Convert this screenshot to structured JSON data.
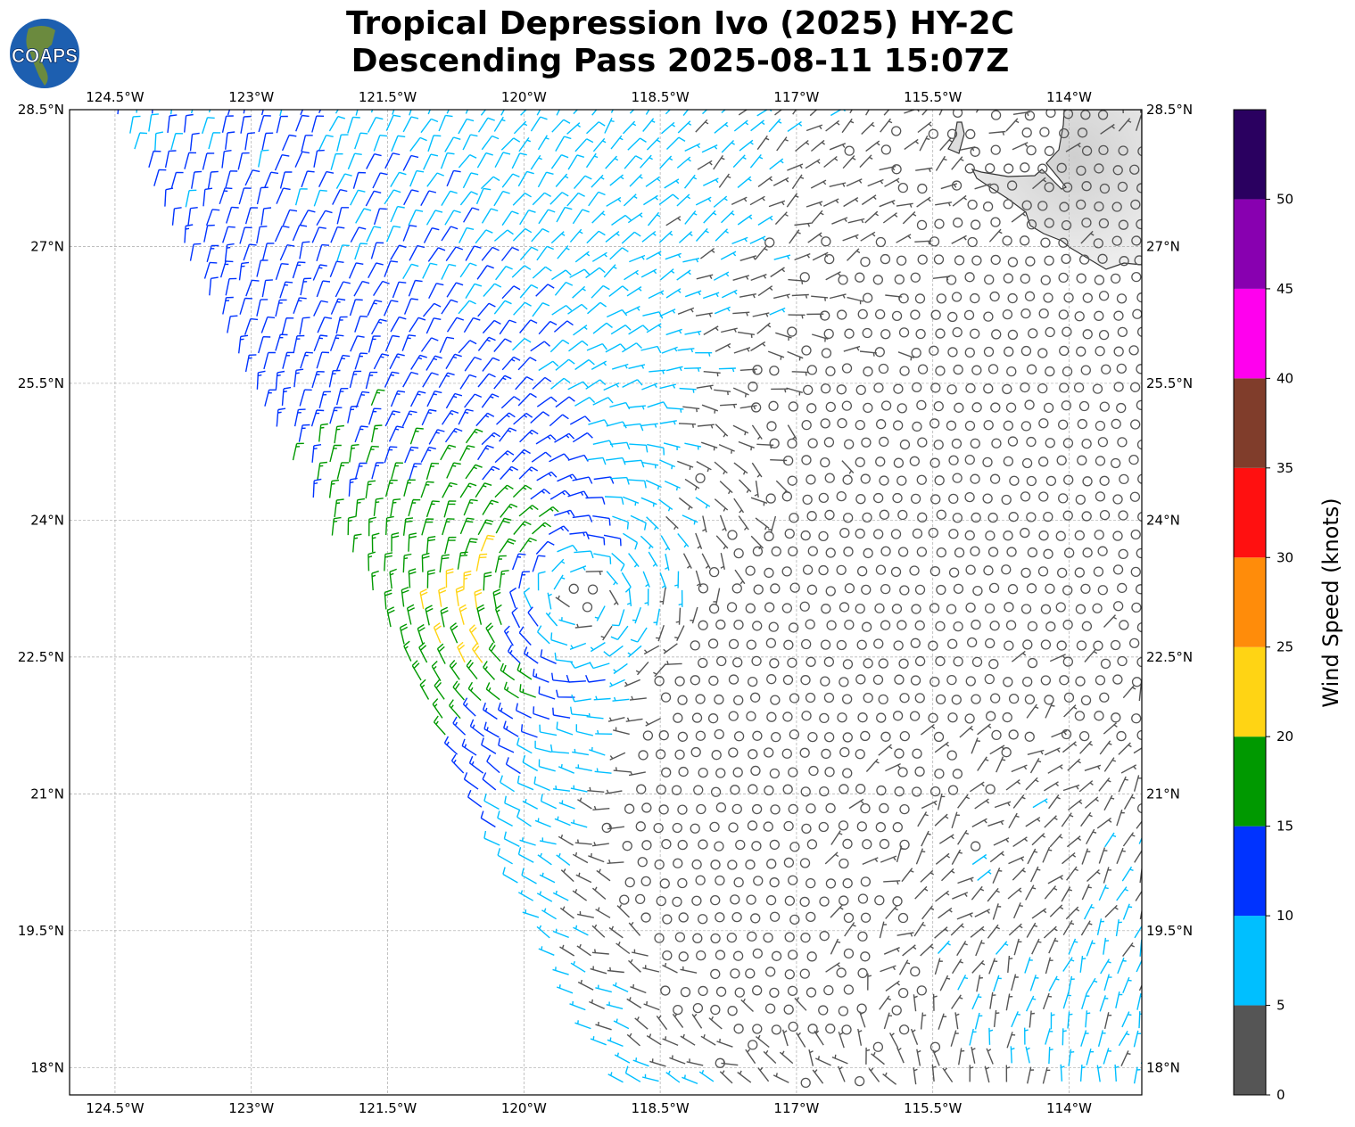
{
  "header": {
    "title_line1": "Tropical Depression Ivo (2025) HY-2C",
    "title_line2": "Descending Pass 2025-08-11 15:07Z",
    "logo_text": "COAPS"
  },
  "chart_data": {
    "type": "map",
    "title": "Tropical Depression Ivo (2025) HY-2C Descending Pass 2025-08-11 15:07Z",
    "extent": {
      "lon_west": -125.0,
      "lon_east": -113.2,
      "lat_south": 17.7,
      "lat_north": 28.5
    },
    "lon_ticks": [
      {
        "value": -124.5,
        "label": "124.5°W"
      },
      {
        "value": -123.0,
        "label": "123°W"
      },
      {
        "value": -121.5,
        "label": "121.5°W"
      },
      {
        "value": -120.0,
        "label": "120°W"
      },
      {
        "value": -118.5,
        "label": "118.5°W"
      },
      {
        "value": -117.0,
        "label": "117°W"
      },
      {
        "value": -115.5,
        "label": "115.5°W"
      },
      {
        "value": -114.0,
        "label": "114°W"
      }
    ],
    "lat_ticks": [
      {
        "value": 28.5,
        "label": "28.5°N"
      },
      {
        "value": 27.0,
        "label": "27°N"
      },
      {
        "value": 25.5,
        "label": "25.5°N"
      },
      {
        "value": 24.0,
        "label": "24°N"
      },
      {
        "value": 22.5,
        "label": "22.5°N"
      },
      {
        "value": 21.0,
        "label": "21°N"
      },
      {
        "value": 19.5,
        "label": "19.5°N"
      },
      {
        "value": 18.0,
        "label": "18°N"
      }
    ],
    "grid": true,
    "marks": "wind barbs colored by speed",
    "colorbar": {
      "label": "Wind Speed (knots)",
      "bounds": [
        0,
        5,
        10,
        15,
        20,
        25,
        30,
        35,
        40,
        45,
        50,
        55
      ],
      "colors": [
        "#555555",
        "#00bfff",
        "#0033ff",
        "#009900",
        "#ffd414",
        "#ff8c0a",
        "#ff1010",
        "#803d2b",
        "#ff00ee",
        "#8800b0",
        "#2a0060"
      ],
      "ticks": [
        {
          "value": 0,
          "label": "0"
        },
        {
          "value": 5,
          "label": "5"
        },
        {
          "value": 10,
          "label": "10"
        },
        {
          "value": 15,
          "label": "15"
        },
        {
          "value": 20,
          "label": "20"
        },
        {
          "value": 25,
          "label": "25"
        },
        {
          "value": 30,
          "label": "30"
        },
        {
          "value": 35,
          "label": "35"
        },
        {
          "value": 40,
          "label": "40"
        },
        {
          "value": 45,
          "label": "45"
        },
        {
          "value": 50,
          "label": "50"
        }
      ]
    }
  }
}
